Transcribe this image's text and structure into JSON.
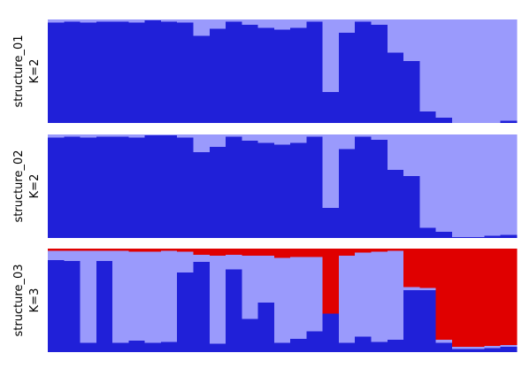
{
  "chart_data": [
    {
      "type": "bar",
      "stacked": true,
      "ylabel": [
        "structure_01",
        "K=2"
      ],
      "ylim": [
        0,
        1
      ],
      "individuals": 29,
      "colors": [
        "#2020d8",
        "#9a9afc"
      ],
      "series": [
        {
          "values": [
            0.97,
            0.98,
            0.97,
            0.98,
            0.98,
            0.97,
            0.99,
            0.98,
            0.97,
            0.84,
            0.91,
            0.98,
            0.95,
            0.92,
            0.9,
            0.92,
            0.98,
            0.3,
            0.87,
            0.98,
            0.95,
            0.68,
            0.6,
            0.11,
            0.05,
            0.0,
            0.0,
            0.0,
            0.02
          ]
        },
        {
          "values": [
            0.03,
            0.02,
            0.03,
            0.02,
            0.02,
            0.03,
            0.01,
            0.02,
            0.03,
            0.16,
            0.09,
            0.02,
            0.05,
            0.08,
            0.1,
            0.08,
            0.02,
            0.7,
            0.13,
            0.02,
            0.05,
            0.32,
            0.4,
            0.89,
            0.95,
            1.0,
            1.0,
            1.0,
            0.98
          ]
        }
      ]
    },
    {
      "type": "bar",
      "stacked": true,
      "ylabel": [
        "structure_02",
        "K=2"
      ],
      "ylim": [
        0,
        1
      ],
      "individuals": 29,
      "colors": [
        "#2020d8",
        "#9a9afc"
      ],
      "series": [
        {
          "values": [
            0.97,
            0.98,
            0.97,
            0.98,
            0.98,
            0.97,
            0.99,
            0.99,
            0.97,
            0.83,
            0.88,
            0.98,
            0.94,
            0.92,
            0.9,
            0.92,
            0.98,
            0.29,
            0.86,
            0.98,
            0.95,
            0.66,
            0.6,
            0.1,
            0.06,
            0.01,
            0.01,
            0.02,
            0.03
          ]
        },
        {
          "values": [
            0.03,
            0.02,
            0.03,
            0.02,
            0.02,
            0.03,
            0.01,
            0.01,
            0.03,
            0.17,
            0.12,
            0.02,
            0.06,
            0.08,
            0.1,
            0.08,
            0.02,
            0.71,
            0.14,
            0.02,
            0.05,
            0.34,
            0.4,
            0.9,
            0.94,
            0.99,
            0.99,
            0.98,
            0.97
          ]
        }
      ]
    },
    {
      "type": "bar",
      "stacked": true,
      "ylabel": [
        "structure_03",
        "K=3"
      ],
      "ylim": [
        0,
        1
      ],
      "individuals": 29,
      "colors": [
        "#2020d8",
        "#9a9afc",
        "#e00000"
      ],
      "series": [
        {
          "values": [
            0.89,
            0.88,
            0.09,
            0.88,
            0.09,
            0.11,
            0.09,
            0.1,
            0.77,
            0.87,
            0.08,
            0.8,
            0.32,
            0.48,
            0.09,
            0.13,
            0.2,
            0.37,
            0.09,
            0.15,
            0.1,
            0.12,
            0.6,
            0.6,
            0.09,
            0.03,
            0.03,
            0.04,
            0.05
          ]
        },
        {
          "values": [
            0.09,
            0.1,
            0.89,
            0.1,
            0.89,
            0.86,
            0.88,
            0.88,
            0.2,
            0.07,
            0.85,
            0.14,
            0.61,
            0.45,
            0.82,
            0.79,
            0.72,
            0.0,
            0.84,
            0.81,
            0.87,
            0.86,
            0.03,
            0.02,
            0.03,
            0.02,
            0.02,
            0.02,
            0.02
          ]
        },
        {
          "values": [
            0.02,
            0.02,
            0.02,
            0.02,
            0.02,
            0.03,
            0.03,
            0.02,
            0.03,
            0.06,
            0.07,
            0.06,
            0.07,
            0.07,
            0.09,
            0.08,
            0.08,
            0.63,
            0.07,
            0.04,
            0.03,
            0.02,
            0.37,
            0.38,
            0.88,
            0.95,
            0.95,
            0.94,
            0.93
          ]
        }
      ]
    }
  ]
}
